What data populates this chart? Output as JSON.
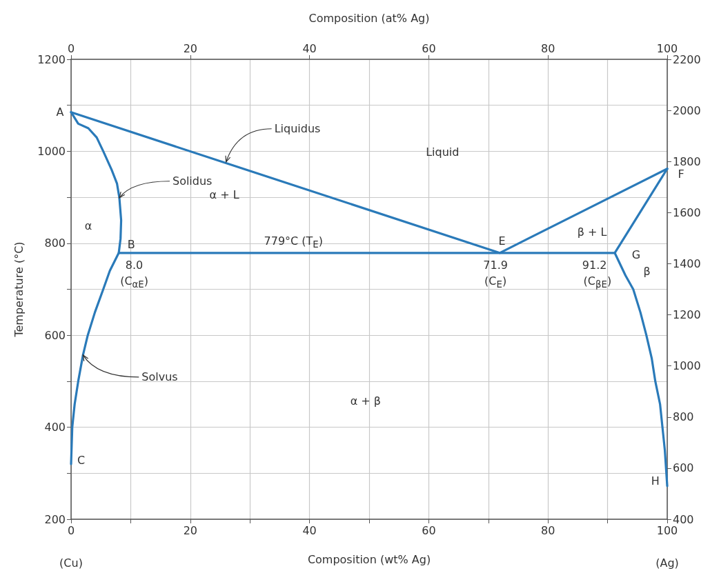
{
  "chart_data": {
    "type": "line",
    "xlabel": "Composition (wt% Ag)",
    "x2label": "Composition (at% Ag)",
    "ylabel": "Temperature (°C)",
    "xlim": [
      0,
      100
    ],
    "xticks": [
      0,
      {
        "value": 10,
        "label": null
      },
      20,
      {
        "value": 30,
        "label": null
      },
      40,
      {
        "value": 50,
        "label": null
      },
      60,
      {
        "value": 70,
        "label": null
      },
      80,
      {
        "value": 90,
        "label": null
      },
      100
    ],
    "x2lim": [
      0,
      100
    ],
    "x2ticks": [
      0,
      20,
      40,
      60,
      80,
      100
    ],
    "ylim": [
      200,
      1200
    ],
    "yticks": [
      200,
      {
        "value": 300,
        "label": null
      },
      400,
      {
        "value": 500,
        "label": null
      },
      600,
      {
        "value": 700,
        "label": null
      },
      800,
      {
        "value": 900,
        "label": null
      },
      1000,
      {
        "value": 1100,
        "label": null
      },
      1200
    ],
    "y2lim": [
      400,
      2200
    ],
    "y2ticks": [
      400,
      600,
      800,
      1000,
      1200,
      1400,
      1600,
      1800,
      2000,
      2200
    ],
    "grid": true,
    "marker": "none",
    "line_style": "solid",
    "series": [
      {
        "color": "#2a7ab9",
        "x": [
          0,
          71.9,
          86.5,
          100
        ],
        "values": [
          1085,
          779,
          874,
          962
        ]
      },
      {
        "color": "#2a7ab9",
        "x": [
          0,
          1.2,
          2.9,
          4.3,
          5.4,
          6.8,
          7.7,
          8.1,
          8.4,
          8.3,
          8.0,
          6.5,
          5.4,
          4.0,
          2.8,
          2.0,
          1.2,
          0.6,
          0.2,
          0
        ],
        "values": [
          1085,
          1060,
          1050,
          1030,
          1000,
          960,
          930,
          899,
          850,
          810,
          779,
          740,
          700,
          650,
          600,
          557,
          500,
          450,
          400,
          320
        ]
      },
      {
        "color": "#2a7ab9",
        "x": [
          100,
          91.2,
          93,
          94.3,
          95.5,
          96.5,
          97.4,
          98,
          98.8,
          99.2,
          99.6,
          100
        ],
        "values": [
          962,
          779,
          730,
          700,
          650,
          600,
          550,
          500,
          450,
          400,
          350,
          272
        ]
      },
      {
        "color": "#2a7ab9",
        "x": [
          8.0,
          91.2
        ],
        "values": [
          779,
          779
        ]
      }
    ],
    "annotations": [
      {
        "text": "Liquidus",
        "x": 26.0,
        "y": 977
      },
      {
        "text": "Solidus",
        "x": 8.1,
        "y": 899
      },
      {
        "text": "Solvus",
        "x": 2.0,
        "y": 557
      },
      "Liquid",
      "α + L",
      "β + L",
      "α",
      "β",
      "α + β",
      "779°C (T$_{E}$)",
      {
        "text": "A",
        "x": 0,
        "y": 1085
      },
      "B",
      "C",
      "E",
      {
        "text": "F",
        "x": 100,
        "y": 962
      },
      "G",
      "H",
      "8.0",
      "(C$_{αE}$)",
      "71.9",
      "(C$_{E}$)",
      "91.2",
      "(C$_{βE}$)",
      "(Cu)",
      "(Ag)"
    ]
  }
}
